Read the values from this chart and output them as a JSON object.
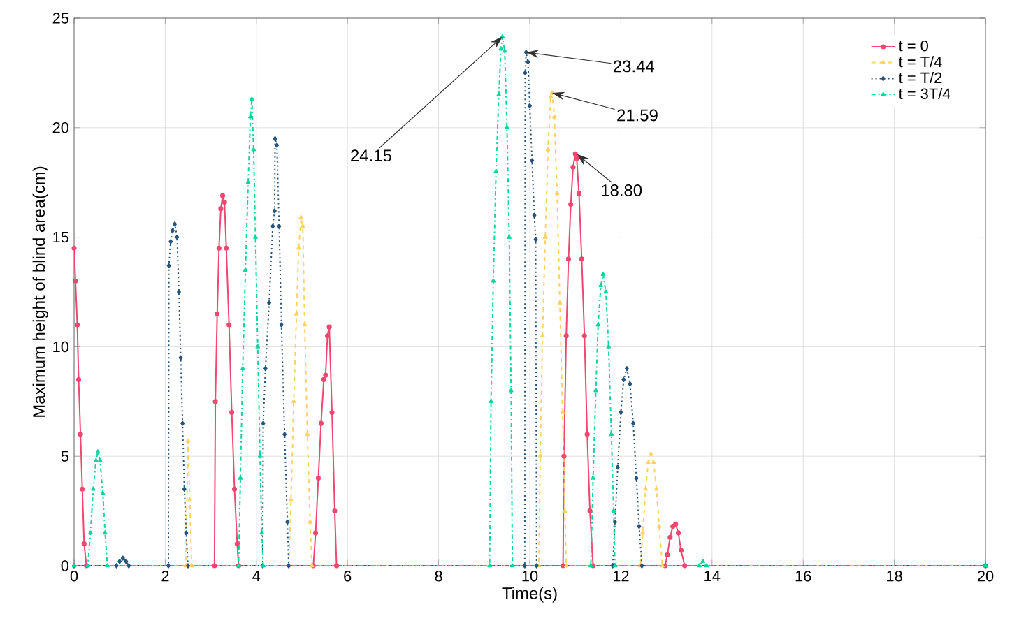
{
  "chart_data": {
    "type": "line",
    "xlabel": "Time(s)",
    "ylabel": "Maximum height of blind area(cm)",
    "xlim": [
      0,
      20
    ],
    "ylim": [
      0,
      25
    ],
    "xticks": [
      0,
      2,
      4,
      6,
      8,
      10,
      12,
      14,
      16,
      18,
      20
    ],
    "yticks": [
      0,
      5,
      10,
      15,
      20,
      25
    ],
    "grid": true,
    "legend": "top right",
    "series": [
      {
        "name": "t = 0",
        "color": "#ef476f",
        "marker": "circle",
        "line_style": "solid",
        "x": [
          0,
          0.03,
          0.07,
          0.1,
          0.14,
          0.18,
          0.22,
          0.27,
          3.08,
          3.1,
          3.14,
          3.18,
          3.22,
          3.26,
          3.3,
          3.34,
          3.4,
          3.46,
          3.52,
          3.58,
          3.61,
          5.25,
          5.3,
          5.36,
          5.42,
          5.48,
          5.52,
          5.56,
          5.6,
          5.66,
          5.72,
          5.76,
          10.73,
          10.75,
          10.8,
          10.85,
          10.9,
          10.95,
          11.0,
          11.03,
          11.08,
          11.14,
          11.2,
          11.26,
          11.32,
          11.39,
          12.97,
          13.02,
          13.08,
          13.14,
          13.2,
          13.26,
          13.32,
          13.4,
          20
        ],
        "values": [
          14.5,
          13,
          11,
          8.5,
          6,
          3.5,
          1,
          0,
          0,
          7.5,
          11.5,
          14.5,
          16.3,
          16.9,
          16.6,
          14.5,
          11,
          7,
          3.5,
          1,
          0,
          0,
          1.5,
          4,
          6.5,
          8.5,
          8.7,
          10.5,
          10.9,
          7,
          2.5,
          0,
          0,
          5,
          10.5,
          14,
          16.5,
          18.2,
          18.8,
          18.6,
          17,
          14,
          10.5,
          6,
          2.5,
          0,
          0,
          0.5,
          1.3,
          1.8,
          1.9,
          1.5,
          0.7,
          0,
          0
        ]
      },
      {
        "name": "t = T/4",
        "color": "#ffd166",
        "marker": "triangle",
        "line_style": "dashed",
        "x": [
          0,
          2.45,
          2.5,
          2.54,
          2.58,
          4.71,
          4.76,
          4.82,
          4.88,
          4.93,
          4.98,
          5.02,
          5.06,
          5.12,
          5.18,
          5.22,
          10.2,
          10.23,
          10.28,
          10.34,
          10.4,
          10.46,
          10.49,
          10.54,
          10.6,
          10.66,
          10.72,
          10.77,
          10.8,
          12.43,
          12.48,
          12.54,
          12.6,
          12.66,
          12.72,
          12.78,
          12.84,
          12.91,
          20
        ],
        "values": [
          0,
          0,
          5.7,
          3,
          0,
          0,
          3,
          7.5,
          11.5,
          14.5,
          15.9,
          15.5,
          11,
          6,
          2,
          0,
          0,
          5,
          10.5,
          15,
          19,
          21.4,
          21.59,
          20.5,
          17,
          12,
          7,
          2.5,
          0,
          0,
          1.5,
          3.5,
          4.7,
          5.1,
          4.7,
          3.5,
          1.8,
          0,
          0
        ]
      },
      {
        "name": "t = T/2",
        "color": "#26547c",
        "marker": "diamond",
        "line_style": "dotted",
        "x": [
          0,
          0.93,
          1.0,
          1.07,
          1.14,
          1.2,
          2.07,
          2.08,
          2.12,
          2.16,
          2.21,
          2.26,
          2.3,
          2.34,
          2.38,
          2.42,
          2.46,
          2.5,
          4.14,
          4.15,
          4.2,
          4.28,
          4.36,
          4.4,
          4.41,
          4.45,
          4.5,
          4.55,
          4.62,
          4.68,
          4.71,
          9.89,
          9.9,
          9.92,
          9.96,
          10.0,
          10.05,
          10.1,
          10.13,
          10.15,
          11.82,
          11.87,
          11.93,
          12.0,
          12.06,
          12.13,
          12.2,
          12.27,
          12.34,
          12.4,
          12.46,
          20
        ],
        "values": [
          0,
          0,
          0.2,
          0.35,
          0.2,
          0,
          0,
          13.7,
          14.8,
          15.3,
          15.6,
          15,
          12.5,
          9.5,
          6.5,
          3.5,
          1.5,
          0,
          0,
          6.5,
          9,
          12,
          15.5,
          16.2,
          19.5,
          19.2,
          15.5,
          11,
          6,
          2,
          0,
          0,
          22.5,
          23.44,
          23,
          21,
          18.5,
          16,
          14.9,
          0,
          0,
          2,
          4.5,
          7,
          8.5,
          9.0,
          8.3,
          6.5,
          4,
          1.8,
          0,
          0
        ]
      },
      {
        "name": "t = 3T/4",
        "color": "#06d6a0",
        "marker": "triangle",
        "line_style": "dashdot",
        "x": [
          0,
          0.3,
          0.36,
          0.42,
          0.48,
          0.52,
          0.57,
          0.63,
          0.68,
          0.73,
          3.61,
          3.65,
          3.7,
          3.76,
          3.82,
          3.87,
          3.9,
          3.94,
          3.98,
          4.03,
          4.08,
          4.12,
          4.15,
          9.12,
          9.15,
          9.2,
          9.26,
          9.32,
          9.37,
          9.4,
          9.45,
          9.5,
          9.55,
          9.59,
          9.62,
          11.34,
          11.39,
          11.45,
          11.5,
          11.56,
          11.61,
          11.67,
          11.73,
          11.79,
          11.84,
          11.87,
          13.72,
          13.8,
          13.88,
          20
        ],
        "values": [
          0,
          0,
          1.5,
          3.5,
          4.8,
          5.2,
          4.8,
          3.3,
          1.5,
          0,
          0,
          4,
          9,
          13.5,
          17.5,
          20.5,
          21.3,
          19,
          15,
          10,
          5,
          1.5,
          0,
          0,
          7.5,
          13,
          18,
          21.5,
          23.6,
          24.15,
          23.5,
          20,
          15,
          8,
          0,
          0,
          4,
          8,
          11,
          12.8,
          13.3,
          12.5,
          10,
          6,
          2.5,
          0,
          0,
          0.2,
          0,
          0
        ]
      }
    ],
    "annotations": [
      {
        "text": "24.15",
        "x": 9.4,
        "y": 24.15
      },
      {
        "text": "23.44",
        "x": 9.92,
        "y": 23.44
      },
      {
        "text": "21.59",
        "x": 10.49,
        "y": 21.59
      },
      {
        "text": "18.80",
        "x": 11.03,
        "y": 18.8
      }
    ]
  }
}
